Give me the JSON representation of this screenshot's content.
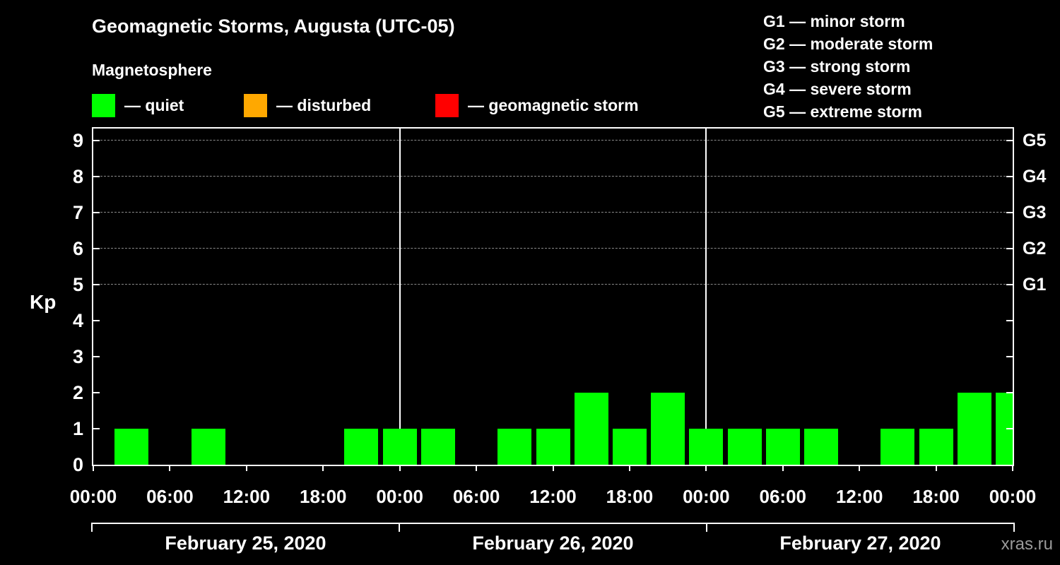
{
  "title": "Geomagnetic Storms, Augusta (UTC-05)",
  "subtitle": "Magnetosphere",
  "kp_axis_label": "Kp",
  "watermark": "xras.ru",
  "colors": {
    "quiet": "#00ff00",
    "disturbed": "#ffa800",
    "storm": "#ff0000",
    "background": "#000000",
    "axis": "#ffffff",
    "grid": "#8a8a8a",
    "watermark": "#9a9a9a"
  },
  "legend": [
    {
      "label": "— quiet",
      "color_key": "quiet"
    },
    {
      "label": "— disturbed",
      "color_key": "disturbed"
    },
    {
      "label": "— geomagnetic storm",
      "color_key": "storm"
    }
  ],
  "storm_scale_legend": [
    "G1 — minor storm",
    "G2 — moderate storm",
    "G3 — strong storm",
    "G4 — severe storm",
    "G5 — extreme storm"
  ],
  "chart_data": {
    "type": "bar",
    "title": "Geomagnetic Storms, Augusta (UTC-05)",
    "subtitle": "Magnetosphere",
    "ylabel": "Kp",
    "ylim": [
      0,
      9.4
    ],
    "y_ticks": [
      0,
      1,
      2,
      3,
      4,
      5,
      6,
      7,
      8,
      9
    ],
    "gridlines_at": [
      5,
      6,
      7,
      8,
      9
    ],
    "grid_style": "dashed",
    "legend_position": "top",
    "right_axis": [
      {
        "value": 5,
        "label": "G1"
      },
      {
        "value": 6,
        "label": "G2"
      },
      {
        "value": 7,
        "label": "G3"
      },
      {
        "value": 8,
        "label": "G4"
      },
      {
        "value": 9,
        "label": "G5"
      }
    ],
    "interval_hours": 3,
    "x_tick_labels": [
      "00:00",
      "06:00",
      "12:00",
      "18:00",
      "00:00",
      "06:00",
      "12:00",
      "18:00",
      "00:00",
      "06:00",
      "12:00",
      "18:00",
      "00:00"
    ],
    "bar_color": "#00ff00",
    "days": [
      {
        "date": "February 25, 2020",
        "values": [
          1,
          0,
          1,
          0,
          0,
          0,
          1,
          1
        ]
      },
      {
        "date": "February 26, 2020",
        "values": [
          1,
          0,
          1,
          1,
          2,
          1,
          2,
          1
        ]
      },
      {
        "date": "February 27, 2020",
        "values": [
          1,
          1,
          1,
          0,
          1,
          1,
          2,
          2
        ]
      }
    ]
  }
}
